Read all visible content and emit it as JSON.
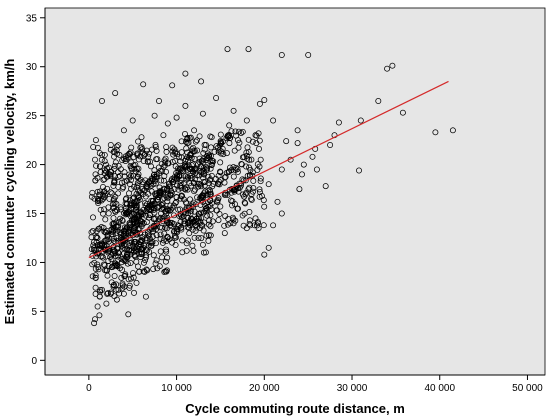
{
  "chart_data": {
    "type": "scatter",
    "title": "",
    "xlabel": "Cycle commuting route distance, m",
    "ylabel": "Estimated commuter cycling velocity, km/h",
    "xlim": [
      -5000,
      52000
    ],
    "ylim": [
      -1.5,
      36
    ],
    "xticks": [
      0,
      10000,
      20000,
      30000,
      40000,
      50000
    ],
    "xtick_labels": [
      "0",
      "10 000",
      "20 000",
      "30 000",
      "40 000",
      "50 000"
    ],
    "yticks": [
      0,
      5,
      10,
      15,
      20,
      25,
      30,
      35
    ],
    "ytick_labels": [
      "0",
      "5",
      "10",
      "15",
      "20",
      "25",
      "30",
      "35"
    ],
    "grid": false,
    "background_color": "#e6e6e6",
    "marker": "open-circle",
    "marker_color": "#000000",
    "fit_line": {
      "type": "linear",
      "color": "#d42a2a",
      "x": [
        0,
        41000
      ],
      "y": [
        10.5,
        28.5
      ]
    },
    "series": [
      {
        "points": [
          [
            15800,
            31.8
          ],
          [
            18200,
            31.8
          ],
          [
            25000,
            31.2
          ],
          [
            22000,
            31.2
          ],
          [
            34000,
            29.8
          ],
          [
            34600,
            30.1
          ],
          [
            35800,
            25.3
          ],
          [
            33000,
            26.5
          ],
          [
            39500,
            23.3
          ],
          [
            41500,
            23.5
          ],
          [
            30800,
            19.4
          ],
          [
            27000,
            17.8
          ],
          [
            31000,
            24.5
          ],
          [
            28500,
            24.3
          ],
          [
            6200,
            28.2
          ],
          [
            3000,
            27.3
          ],
          [
            11000,
            29.3
          ],
          [
            12800,
            28.5
          ],
          [
            8000,
            26.5
          ],
          [
            9500,
            28.1
          ],
          [
            1500,
            26.5
          ],
          [
            19500,
            26.2
          ],
          [
            20000,
            26.6
          ],
          [
            22500,
            22.4
          ],
          [
            23800,
            23.5
          ],
          [
            23800,
            22.2
          ],
          [
            24500,
            20.0
          ],
          [
            24300,
            19.0
          ],
          [
            25800,
            21.6
          ],
          [
            25500,
            20.8
          ],
          [
            20500,
            11.5
          ],
          [
            20000,
            10.8
          ],
          [
            13000,
            11.8
          ],
          [
            12500,
            12.5
          ],
          [
            6500,
            6.5
          ],
          [
            4000,
            6.8
          ],
          [
            4500,
            4.7
          ],
          [
            600,
            3.8
          ],
          [
            700,
            4.2
          ],
          [
            1200,
            4.6
          ],
          [
            1000,
            5.5
          ],
          [
            2000,
            5.8
          ],
          [
            3200,
            6.2
          ],
          [
            2500,
            6.8
          ],
          [
            1500,
            7.2
          ],
          [
            500,
            21.8
          ],
          [
            800,
            22.5
          ],
          [
            700,
            20.5
          ],
          [
            1500,
            21.0
          ],
          [
            2500,
            22.0
          ],
          [
            4000,
            23.5
          ],
          [
            5000,
            24.5
          ],
          [
            6000,
            22.8
          ],
          [
            7500,
            25.0
          ],
          [
            8500,
            23.0
          ],
          [
            9000,
            24.2
          ],
          [
            10000,
            24.8
          ],
          [
            11000,
            26.0
          ],
          [
            12000,
            23.5
          ],
          [
            13000,
            25.2
          ],
          [
            14000,
            22.8
          ],
          [
            14500,
            26.8
          ],
          [
            16000,
            24.0
          ],
          [
            16500,
            25.5
          ],
          [
            17000,
            22.5
          ],
          [
            18000,
            24.5
          ],
          [
            19000,
            23.0
          ],
          [
            21000,
            24.5
          ],
          [
            17500,
            18.5
          ],
          [
            18500,
            16.5
          ],
          [
            19500,
            17.2
          ],
          [
            20500,
            18.0
          ],
          [
            21500,
            16.2
          ],
          [
            22000,
            19.5
          ],
          [
            23000,
            20.5
          ],
          [
            24000,
            17.5
          ],
          [
            26000,
            19.5
          ],
          [
            27500,
            22.0
          ],
          [
            28000,
            23.0
          ],
          [
            16500,
            14.0
          ],
          [
            17000,
            15.5
          ],
          [
            18000,
            13.5
          ],
          [
            19000,
            14.5
          ],
          [
            15500,
            13.0
          ],
          [
            21000,
            13.8
          ],
          [
            22000,
            15.0
          ]
        ],
        "clusters": [
          {
            "x_range": [
              300,
              6000
            ],
            "y_range": [
              6.5,
              20.0
            ]
          },
          {
            "x_range": [
              1000,
              9000
            ],
            "y_range": [
              9.0,
              22.0
            ]
          },
          {
            "x_range": [
              4000,
              14000
            ],
            "y_range": [
              11.0,
              22.5
            ]
          },
          {
            "x_range": [
              10000,
              20000
            ],
            "y_range": [
              13.5,
              23.5
            ]
          }
        ],
        "bands": [
          [
            [
              1000,
              11.2
            ],
            [
              10000,
              21.5
            ]
          ],
          [
            [
              2000,
              10.0
            ],
            [
              12500,
              21.8
            ]
          ],
          [
            [
              3000,
              9.2
            ],
            [
              14500,
              20.6
            ]
          ],
          [
            [
              5000,
              10.5
            ],
            [
              17500,
              20.2
            ]
          ],
          [
            [
              8000,
              11.8
            ],
            [
              20000,
              19.8
            ]
          ],
          [
            [
              6000,
              13.8
            ],
            [
              16000,
              23.0
            ]
          ],
          [
            [
              3500,
              12.8
            ],
            [
              11500,
              20.0
            ]
          ]
        ]
      }
    ]
  }
}
